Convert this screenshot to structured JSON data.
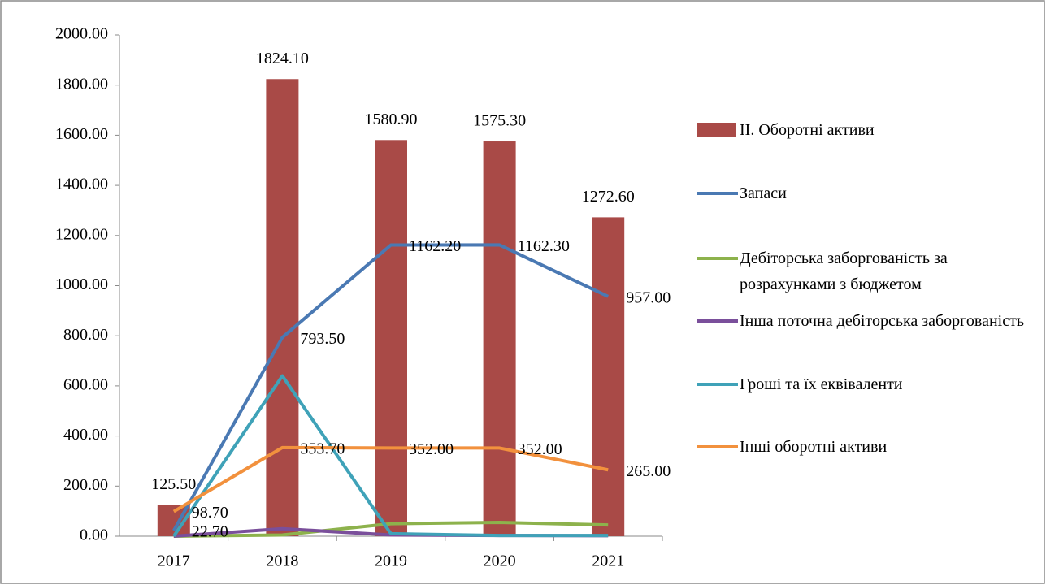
{
  "chart_data": {
    "type": "bar-line",
    "categories": [
      "2017",
      "2018",
      "2019",
      "2020",
      "2021"
    ],
    "series": [
      {
        "name": "II. Оборотні активи",
        "type": "bar",
        "color": "#a94a47",
        "values": [
          125.5,
          1824.1,
          1580.9,
          1575.3,
          1272.6
        ],
        "value_labels": [
          "125.50",
          "1824.10",
          "1580.90",
          "1575.30",
          "1272.60"
        ]
      },
      {
        "name": "Запаси",
        "type": "line",
        "color": "#4a79b3",
        "values": [
          22.7,
          793.5,
          1162.2,
          1162.3,
          957
        ],
        "value_labels": [
          "22.70",
          "793.50",
          "1162.20",
          "1162.30",
          "957.00"
        ]
      },
      {
        "name": "Дебіторська заборгованість за розрахунками з бюджетом",
        "type": "line",
        "color": "#8db24c",
        "values": [
          0,
          5,
          50,
          55,
          45
        ]
      },
      {
        "name": "Інша поточна дебіторська заборгованість",
        "type": "line",
        "color": "#7a4f9b",
        "values": [
          0,
          30,
          5,
          3,
          2
        ]
      },
      {
        "name": "Гроші та їх еквіваленти",
        "type": "line",
        "color": "#3fa2b8",
        "values": [
          0,
          640,
          10,
          3,
          3
        ]
      },
      {
        "name": "Інші оборотні активи",
        "type": "line",
        "color": "#f2913d",
        "values": [
          98.7,
          353.7,
          352,
          352,
          265
        ],
        "value_labels": [
          "98.70",
          "353.70",
          "352.00",
          "352.00",
          "265.00"
        ]
      }
    ],
    "ylim": [
      0,
      2000
    ],
    "yticks": [
      {
        "value": 0,
        "label": "0.00"
      },
      {
        "value": 200,
        "label": "200.00"
      },
      {
        "value": 400,
        "label": "400.00"
      },
      {
        "value": 600,
        "label": "600.00"
      },
      {
        "value": 800,
        "label": "800.00"
      },
      {
        "value": 1000,
        "label": "1000.00"
      },
      {
        "value": 1200,
        "label": "1200.00"
      },
      {
        "value": 1400,
        "label": "1400.00"
      },
      {
        "value": 1600,
        "label": "1600.00"
      },
      {
        "value": 1800,
        "label": "1800.00"
      },
      {
        "value": 2000,
        "label": "2000.00"
      }
    ],
    "grid": false,
    "legend": "right"
  }
}
